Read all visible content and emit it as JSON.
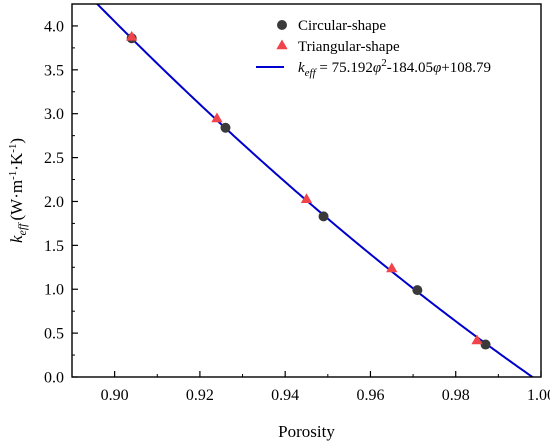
{
  "chart_data": {
    "type": "scatter",
    "xlabel": "Porosity",
    "ylabel": {
      "base": "k",
      "base_sub": "eff",
      "units": [
        {
          "text": "(W·m",
          "sup": ""
        },
        {
          "text": "",
          "sup": "-1"
        },
        {
          "text": "·K",
          "sup": ""
        },
        {
          "text": "",
          "sup": "-1"
        },
        {
          "text": ")",
          "sup": ""
        }
      ]
    },
    "xlim": [
      0.89,
      1.0
    ],
    "ylim": [
      0.0,
      4.25
    ],
    "xticks": [
      0.9,
      0.92,
      0.94,
      0.96,
      0.98,
      1.0
    ],
    "xtick_labels": [
      "0.90",
      "0.92",
      "0.94",
      "0.96",
      "0.98",
      "1.00"
    ],
    "yticks": [
      0.0,
      0.5,
      1.0,
      1.5,
      2.0,
      2.5,
      3.0,
      3.5,
      4.0
    ],
    "ytick_labels": [
      "0.0",
      "0.5",
      "1.0",
      "1.5",
      "2.0",
      "2.5",
      "3.0",
      "3.5",
      "4.0"
    ],
    "grid": false,
    "legend_position": "top-right",
    "series": [
      {
        "name": "Circular-shape",
        "kind": "scatter",
        "marker": "circle",
        "color": "#3a3a3a",
        "x": [
          0.904,
          0.926,
          0.949,
          0.971,
          0.987
        ],
        "y": [
          3.86,
          2.84,
          1.83,
          0.99,
          0.37
        ]
      },
      {
        "name": "Triangular-shape",
        "kind": "scatter",
        "marker": "triangle",
        "color": "#f0444a",
        "x": [
          0.904,
          0.924,
          0.945,
          0.965,
          0.985
        ],
        "y": [
          3.87,
          2.94,
          2.02,
          1.23,
          0.41
        ]
      },
      {
        "name_parts": [
          {
            "text": "k",
            "italic": true,
            "sub": "eff"
          },
          {
            "text": " = 75.192"
          },
          {
            "text": "φ",
            "italic": true,
            "sup": "2"
          },
          {
            "text": "-184.05"
          },
          {
            "text": "φ",
            "italic": true
          },
          {
            "text": "+108.79"
          }
        ],
        "kind": "fit",
        "color": "#0000cc",
        "coefficients": [
          75.192,
          -184.05,
          108.79
        ],
        "x_range": [
          0.89,
          1.0
        ]
      }
    ]
  }
}
